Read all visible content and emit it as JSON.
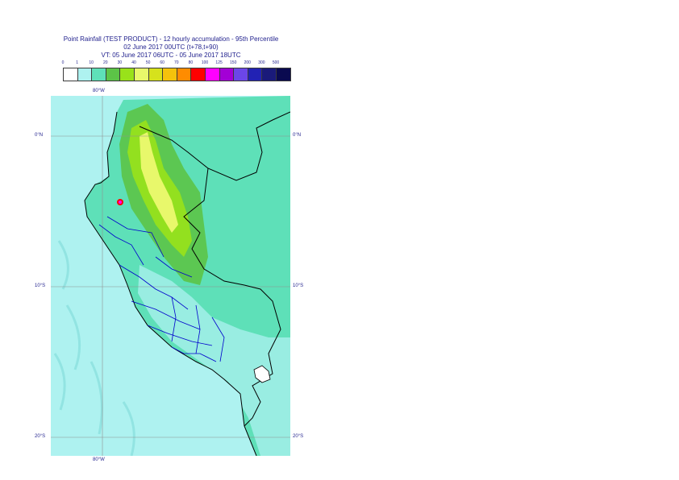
{
  "title": {
    "line1": "Point Rainfall (TEST PRODUCT) - 12 hourly accumulation - 95th Percentile",
    "line2": "02 June 2017 00UTC (t+78,t+90)",
    "line3": "VT: 05 June 2017 06UTC - 05 June 2017 18UTC"
  },
  "legend": {
    "ticks": [
      "0",
      "1",
      "10",
      "20",
      "30",
      "40",
      "50",
      "60",
      "70",
      "80",
      "100",
      "125",
      "150",
      "200",
      "300",
      "500"
    ],
    "colors": [
      "#ffffff",
      "#aef2f0",
      "#5ee0b8",
      "#5cc447",
      "#99e21a",
      "#e8f86b",
      "#d6e21c",
      "#f5c20c",
      "#ff8c00",
      "#ff0000",
      "#ff00ff",
      "#a300d6",
      "#6b46e8",
      "#2222b4",
      "#1a1a7a",
      "#0a0a50"
    ]
  },
  "map": {
    "lon_labels": {
      "top": "80°W",
      "bottom": "80°W"
    },
    "lat_labels": [
      "0°N",
      "10°S",
      "20°S"
    ],
    "colors": {
      "ocean": "#aef2f0",
      "land_low": "#5ee0b8",
      "rain_mid": "#5cc447",
      "rain_high": "#99e21a",
      "rain_peak": "#e8f86b",
      "rain_extreme": "#ff0000",
      "country_border": "#000000",
      "region_border": "#0000cc",
      "grid": "#909090"
    }
  }
}
